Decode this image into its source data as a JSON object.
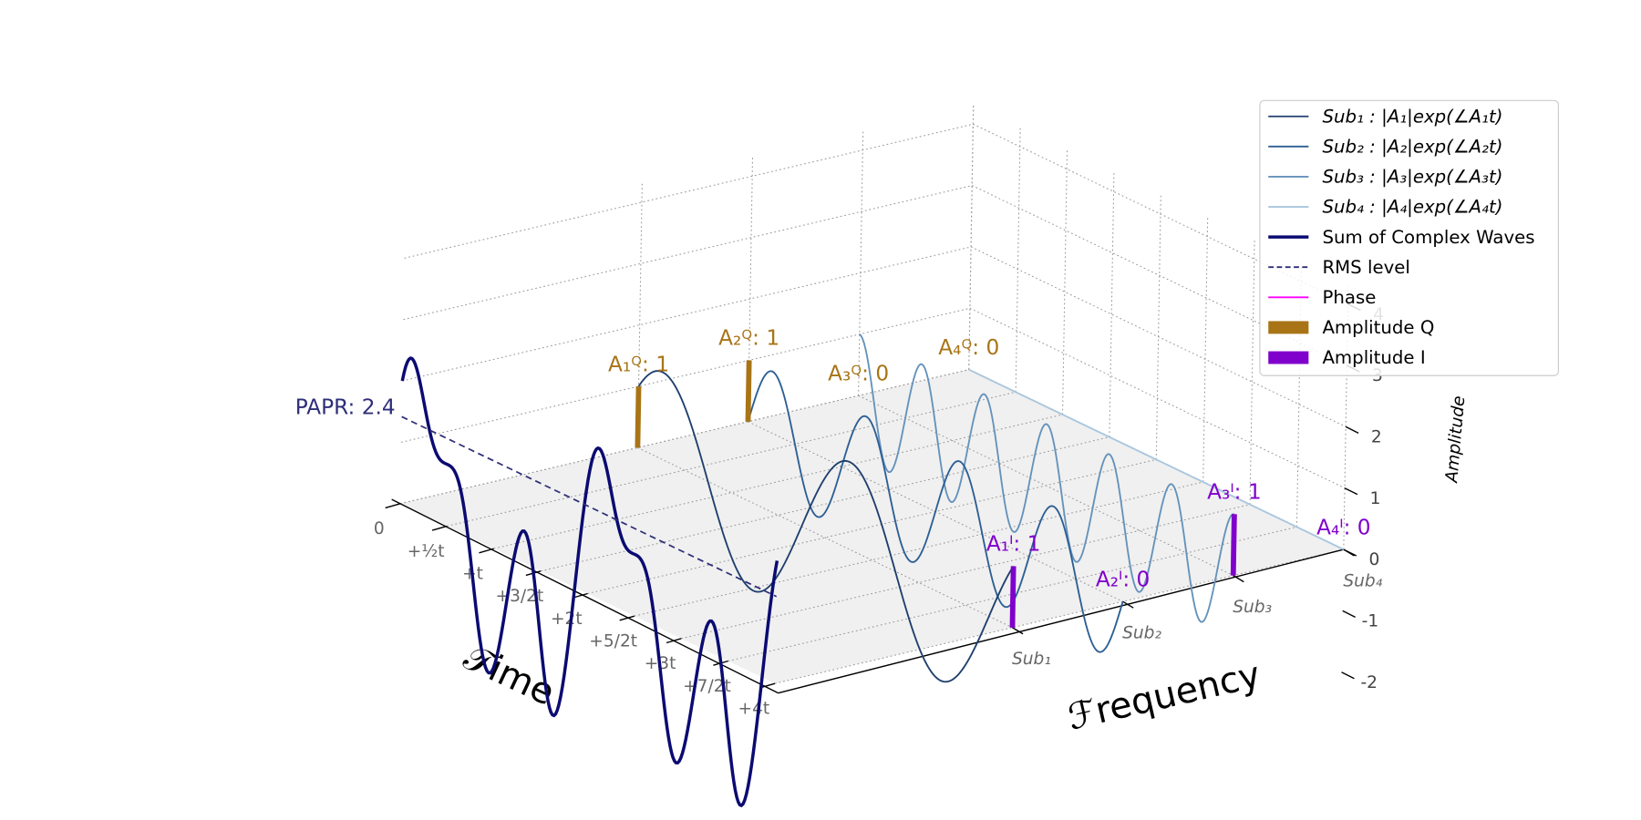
{
  "chart_data": {
    "type": "ofdm3d",
    "xlabel": "𝒯ime",
    "ylabel": "ℱrequency",
    "zlabel": "Amplitude",
    "categories": [
      "Sub₁",
      "Sub₂",
      "Sub₃",
      "Sub₄"
    ],
    "xlim": [
      0,
      4
    ],
    "xticks": [
      0,
      {
        "value": 0.5,
        "label": "+½t"
      },
      {
        "value": 1,
        "label": "+t"
      },
      {
        "value": 1.5,
        "label": "+3/2t"
      },
      {
        "value": 2,
        "label": "+2t"
      },
      {
        "value": 2.5,
        "label": "+5/2t"
      },
      {
        "value": 3,
        "label": "+3t"
      },
      {
        "value": 3.5,
        "label": "+7/2t"
      },
      {
        "value": 4,
        "label": "+4t"
      }
    ],
    "zlim": [
      -2.2,
      4.3
    ],
    "zticks": [
      -2,
      -1,
      0,
      1,
      2,
      3,
      4
    ],
    "grid": true,
    "legend": "upper right",
    "series": [
      {
        "name": "Sub₁ : |A₁|exp(∠A₁t)",
        "color": "#1f3f6e"
      },
      {
        "name": "Sub₂ : |A₂|exp(∠A₂t)",
        "color": "#2d5f94"
      },
      {
        "name": "Sub₃ : |A₃|exp(∠A₃t)",
        "color": "#6592bb"
      },
      {
        "name": "Sub₄ : |A₄|exp(∠A₄t)",
        "color": "#a9c6de"
      },
      {
        "name": "Sum of Complex Waves",
        "color": "#0b0b72"
      },
      {
        "name": "RMS level",
        "color": "#2e2e78"
      },
      {
        "name": "Phase",
        "color": "#ff00ff"
      },
      {
        "name": "Amplitude Q",
        "color": "#a87416",
        "values": [
          1,
          1,
          0,
          0
        ],
        "value_labels": [
          "A₁ꟴ: 1",
          "A₂ꟴ: 1",
          "A₃ꟴ: 0",
          "A₄ꟴ: 0"
        ]
      },
      {
        "name": "Amplitude I",
        "color": "#8000cc",
        "values": [
          1,
          0,
          1,
          0
        ],
        "value_labels": [
          "A₁ᴵ: 1",
          "A₂ᴵ: 0",
          "A₃ᴵ: 1",
          "A₄ᴵ: 0"
        ]
      }
    ],
    "papr": {
      "value": 2.4,
      "label": "PAPR: 2.4"
    }
  }
}
